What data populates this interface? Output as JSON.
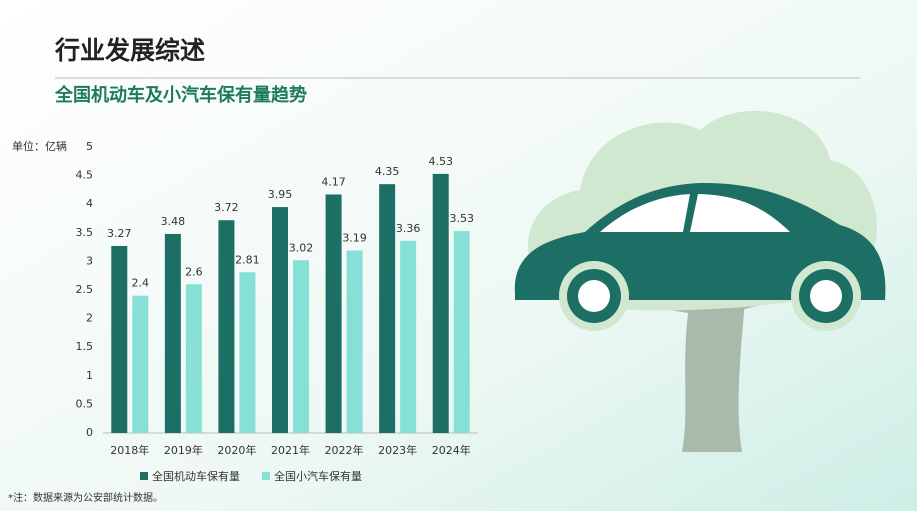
{
  "header": {
    "title": "行业发展综述",
    "subtitle": "全国机动车及小汽车保有量趋势"
  },
  "chart_data": {
    "type": "bar",
    "y_label": "单位：亿辆",
    "categories": [
      "2018年",
      "2019年",
      "2020年",
      "2021年",
      "2022年",
      "2023年",
      "2024年"
    ],
    "series": [
      {
        "name": "全国机动车保有量",
        "color": "#1d6e64",
        "values": [
          3.27,
          3.48,
          3.72,
          3.95,
          4.17,
          4.35,
          4.53
        ]
      },
      {
        "name": "全国小汽车保有量",
        "color": "#86e0d6",
        "values": [
          2.4,
          2.6,
          2.81,
          3.02,
          3.19,
          3.36,
          3.53
        ]
      }
    ],
    "ylim": [
      0,
      5
    ],
    "yticks": [
      0,
      0.5,
      1,
      1.5,
      2,
      2.5,
      3,
      3.5,
      4,
      4.5,
      5
    ],
    "grid": false,
    "legend": "bottom"
  },
  "footnote": "*注：数据来源为公安部统计数据。"
}
